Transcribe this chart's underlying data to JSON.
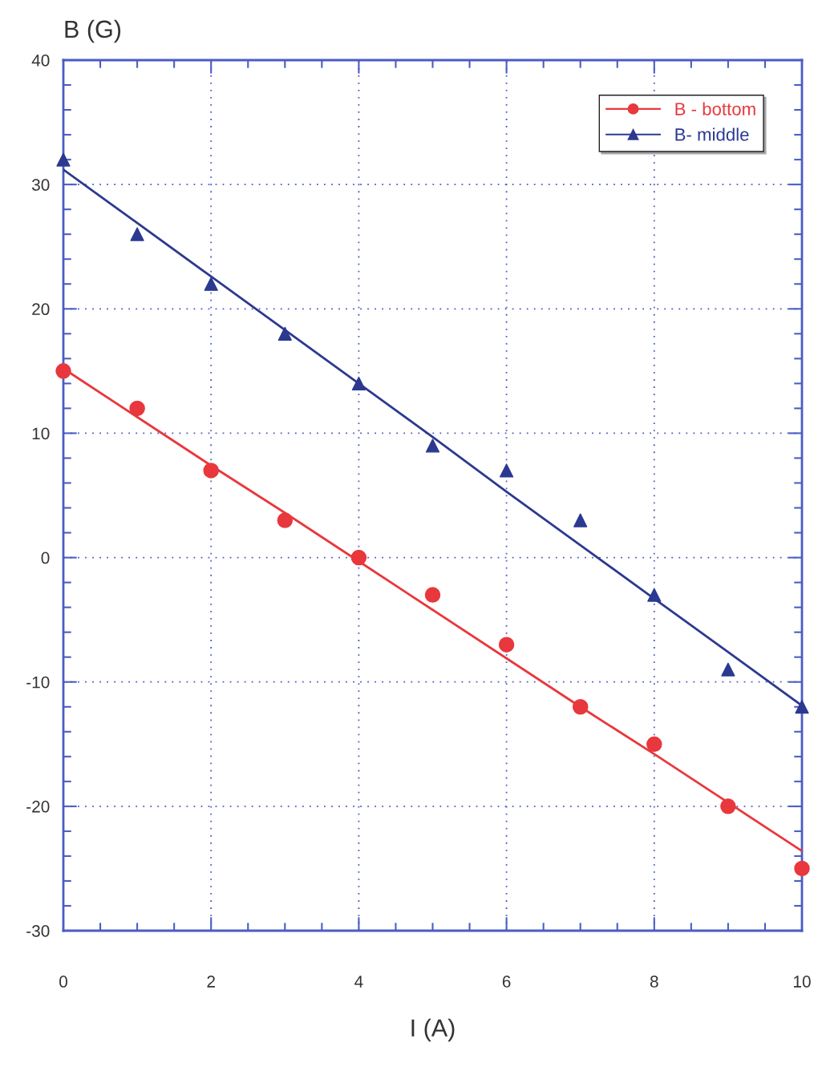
{
  "chart_data": {
    "type": "scatter",
    "xlabel": "I (A)",
    "ylabel": "B (G)",
    "x": [
      0,
      1,
      2,
      3,
      4,
      5,
      6,
      7,
      8,
      9,
      10
    ],
    "xlim": [
      0,
      10
    ],
    "xticks": [
      0,
      2,
      4,
      6,
      8,
      10
    ],
    "ylim": [
      -30,
      40
    ],
    "yticks": [
      -30,
      -20,
      -10,
      0,
      10,
      20,
      30,
      40
    ],
    "grid": true,
    "legend": "top right",
    "series": [
      {
        "name": "B - bottom",
        "color": "#e8383d",
        "marker": "circle",
        "values": [
          15,
          12,
          7,
          3,
          0,
          -3,
          -7,
          -12,
          -15,
          -20,
          -25
        ]
      },
      {
        "name": "B- middle",
        "color": "#2b3990",
        "marker": "triangle",
        "values": [
          32,
          26,
          22,
          18,
          14,
          9,
          7,
          3,
          -3,
          -9,
          -12
        ]
      },
      {
        "type": "line",
        "color": "#e8383d",
        "values": [
          15.2,
          11.3,
          7.4,
          3.6,
          -0.3,
          -4.2,
          -8.1,
          -12.0,
          -15.8,
          -19.7,
          -23.6
        ]
      },
      {
        "type": "line",
        "color": "#2b3990",
        "values": [
          31.2,
          26.9,
          22.6,
          18.3,
          14.0,
          9.7,
          5.3,
          1.0,
          -3.3,
          -7.6,
          -11.9
        ]
      }
    ]
  }
}
